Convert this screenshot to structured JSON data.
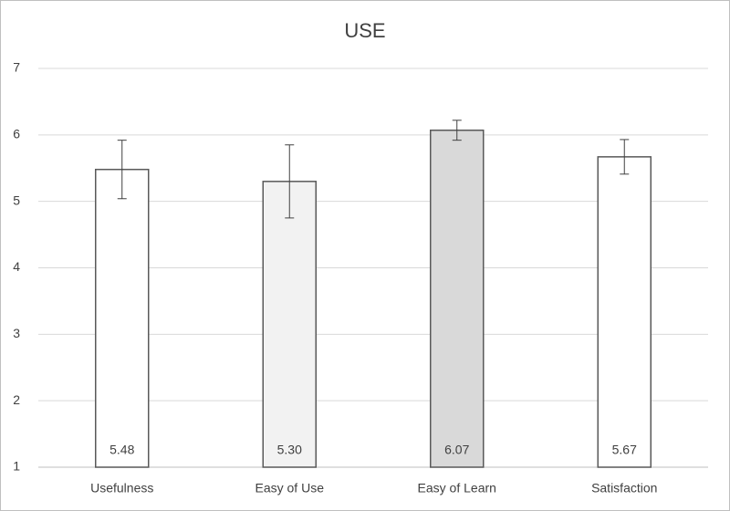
{
  "chart_data": {
    "type": "bar",
    "title": "USE",
    "categories": [
      "Usefulness",
      "Easy of Use",
      "Easy of Learn",
      "Satisfaction"
    ],
    "values": [
      5.48,
      5.3,
      6.07,
      5.67
    ],
    "value_labels": [
      "5.48",
      "5.30",
      "6.07",
      "5.67"
    ],
    "errors": [
      0.44,
      0.55,
      0.15,
      0.26
    ],
    "colors": [
      "#ffffff",
      "#f2f2f2",
      "#d9d9d9",
      "#ffffff"
    ],
    "ylim": [
      1,
      7
    ],
    "yticks": [
      1,
      2,
      3,
      4,
      5,
      6,
      7
    ],
    "grid": true
  }
}
